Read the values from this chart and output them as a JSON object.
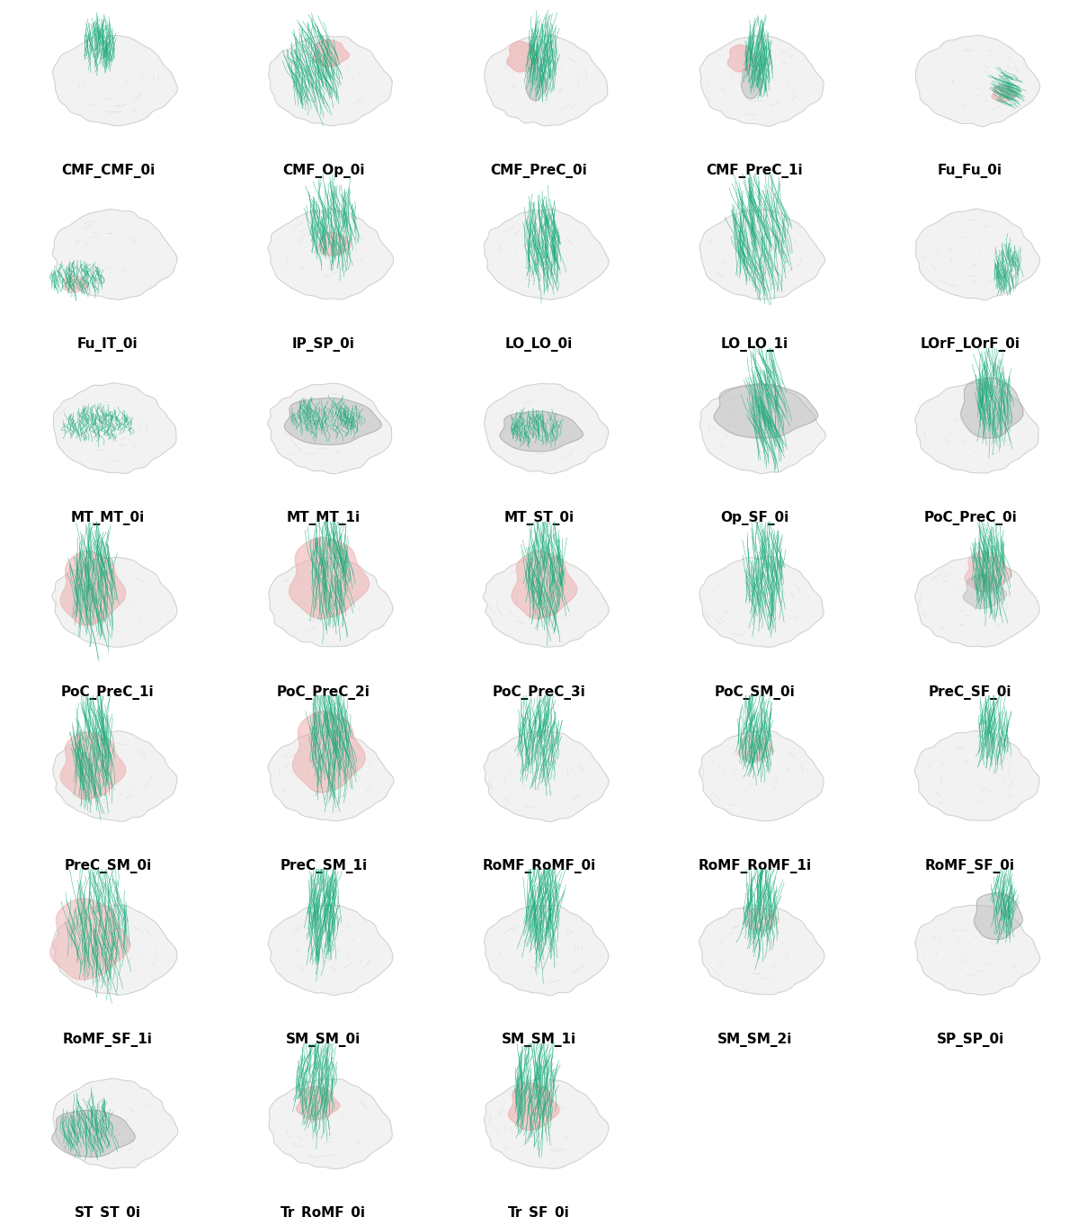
{
  "labels": [
    "CMF_CMF_0i",
    "CMF_Op_0i",
    "CMF_PreC_0i",
    "CMF_PreC_1i",
    "Fu_Fu_0i",
    "Fu_IT_0i",
    "IP_SP_0i",
    "LO_LO_0i",
    "LO_LO_1i",
    "LOrF_LOrF_0i",
    "MT_MT_0i",
    "MT_MT_1i",
    "MT_ST_0i",
    "Op_SF_0i",
    "PoC_PreC_0i",
    "PoC_PreC_1i",
    "PoC_PreC_2i",
    "PoC_PreC_3i",
    "PoC_SM_0i",
    "PreC_SF_0i",
    "PreC_SM_0i",
    "PreC_SM_1i",
    "RoMF_RoMF_0i",
    "RoMF_RoMF_1i",
    "RoMF_SF_0i",
    "RoMF_SF_1i",
    "SM_SM_0i",
    "SM_SM_1i",
    "SM_SM_2i",
    "SP_SP_0i",
    "ST_ST_0i",
    "Tr_RoMF_0i",
    "Tr_SF_0i"
  ],
  "ncols": 5,
  "nrows": 7,
  "figsize": [
    11.99,
    13.53
  ],
  "background_color": "#ffffff",
  "label_fontsize": 11,
  "brain_fill": "#f0f0f0",
  "brain_edge": "#cccccc",
  "sulci_color": "#c0c0c0",
  "fiber_green": "#1aaa7a",
  "region_pink": "#eeaaaa",
  "region_gray": "#a8a8a8",
  "gray_overlay": "#b0b0b0"
}
